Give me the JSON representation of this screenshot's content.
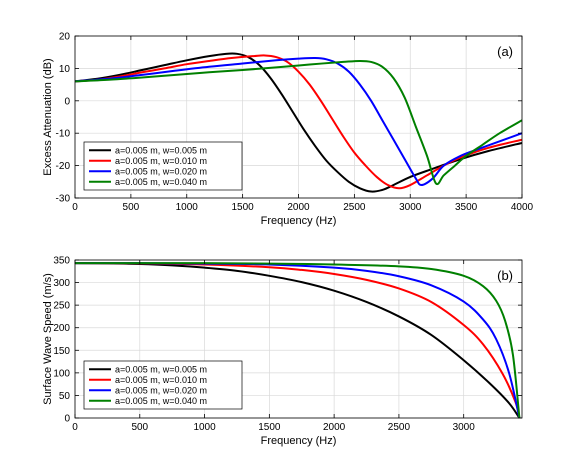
{
  "chart_data": [
    {
      "type": "line",
      "panel_label": "(a)",
      "xlabel": "Frequency (Hz)",
      "ylabel": "Excess Attenuation (dB)",
      "xlim": [
        0,
        4000
      ],
      "ylim": [
        -30,
        20
      ],
      "xticks": [
        0,
        500,
        1000,
        1500,
        2000,
        2500,
        3000,
        3500,
        4000
      ],
      "yticks": [
        -30,
        -20,
        -10,
        0,
        10,
        20
      ],
      "grid": true,
      "legend_position": "bottom-left",
      "series": [
        {
          "name": "a=0.005 m, w=0.005 m",
          "color": "#000000",
          "x": [
            0,
            200,
            400,
            600,
            800,
            1000,
            1200,
            1350,
            1450,
            1550,
            1650,
            1750,
            1850,
            1950,
            2050,
            2150,
            2250,
            2350,
            2450,
            2550,
            2650,
            2750,
            2850,
            3000,
            3200,
            3450,
            3700,
            4000
          ],
          "y": [
            6,
            6.8,
            8,
            9.5,
            11,
            12.5,
            13.8,
            14.5,
            14.5,
            13.5,
            11,
            7,
            2,
            -3.5,
            -9,
            -14,
            -18.5,
            -22,
            -25,
            -27,
            -28,
            -27.5,
            -26,
            -23.5,
            -21,
            -18,
            -15.5,
            -13
          ]
        },
        {
          "name": "a=0.005 m, w=0.010 m",
          "color": "#ff0000",
          "x": [
            0,
            200,
            400,
            600,
            800,
            1000,
            1200,
            1400,
            1600,
            1700,
            1800,
            1900,
            2000,
            2100,
            2200,
            2300,
            2400,
            2500,
            2600,
            2700,
            2800,
            2900,
            3000,
            3150,
            3300,
            3450,
            3700,
            4000
          ],
          "y": [
            6,
            6.5,
            7.5,
            8.8,
            10,
            11.3,
            12.3,
            13.2,
            13.8,
            14,
            13.5,
            12,
            9,
            5,
            0,
            -5.5,
            -11,
            -16,
            -20,
            -23.5,
            -26,
            -27,
            -26,
            -23,
            -20,
            -17.5,
            -14.5,
            -12
          ]
        },
        {
          "name": "a=0.005 m, w=0.020 m",
          "color": "#0000ff",
          "x": [
            0,
            300,
            600,
            900,
            1200,
            1500,
            1800,
            2000,
            2150,
            2250,
            2350,
            2450,
            2550,
            2650,
            2750,
            2850,
            2950,
            3050,
            3100,
            3200,
            3300,
            3450,
            3600,
            3800,
            4000
          ],
          "y": [
            6,
            6.8,
            8,
            9.3,
            10.5,
            11.5,
            12.5,
            13,
            13.2,
            12.8,
            11.5,
            9,
            5,
            0,
            -6,
            -12,
            -18,
            -24,
            -26,
            -24,
            -20,
            -17,
            -15,
            -12.5,
            -10
          ]
        },
        {
          "name": "a=0.005 m, w=0.040 m",
          "color": "#008000",
          "x": [
            0,
            300,
            600,
            900,
            1200,
            1500,
            1800,
            2100,
            2400,
            2550,
            2650,
            2750,
            2850,
            2950,
            3050,
            3150,
            3230,
            3300,
            3400,
            3500,
            3650,
            3800,
            4000
          ],
          "y": [
            6,
            6.5,
            7.2,
            8,
            8.8,
            9.5,
            10.3,
            11.2,
            12,
            12.3,
            12,
            10.5,
            7,
            1,
            -8,
            -17,
            -25.5,
            -23,
            -20,
            -17,
            -13.5,
            -10,
            -6
          ]
        }
      ]
    },
    {
      "type": "line",
      "panel_label": "(b)",
      "xlabel": "Frequency (Hz)",
      "ylabel": "Surface Wave Speed (m/s)",
      "xlim": [
        0,
        3450
      ],
      "ylim": [
        0,
        350
      ],
      "xticks": [
        0,
        500,
        1000,
        1500,
        2000,
        2500,
        3000
      ],
      "yticks": [
        0,
        50,
        100,
        150,
        200,
        250,
        300,
        350
      ],
      "grid": true,
      "legend_position": "bottom-left",
      "series": [
        {
          "name": "a=0.005 m, w=0.005 m",
          "color": "#000000",
          "x": [
            0,
            250,
            500,
            750,
            1000,
            1250,
            1500,
            1750,
            2000,
            2250,
            2500,
            2750,
            3000,
            3200,
            3350,
            3430
          ],
          "y": [
            343,
            342.5,
            341,
            338,
            333,
            326,
            315,
            301,
            282,
            257,
            225,
            184,
            128,
            77,
            33,
            0
          ]
        },
        {
          "name": "a=0.005 m, w=0.010 m",
          "color": "#ff0000",
          "x": [
            0,
            500,
            1000,
            1500,
            1750,
            2000,
            2250,
            2500,
            2750,
            3000,
            3150,
            3300,
            3400,
            3430
          ],
          "y": [
            343,
            342.5,
            340,
            334,
            328,
            319,
            306,
            287,
            257,
            206,
            163,
            98,
            35,
            0
          ]
        },
        {
          "name": "a=0.005 m, w=0.020 m",
          "color": "#0000ff",
          "x": [
            0,
            500,
            1000,
            1500,
            2000,
            2250,
            2500,
            2750,
            3000,
            3150,
            3250,
            3350,
            3430
          ],
          "y": [
            343,
            343,
            342,
            340,
            333,
            326,
            314,
            294,
            258,
            218,
            175,
            100,
            0
          ]
        },
        {
          "name": "a=0.005 m, w=0.040 m",
          "color": "#008000",
          "x": [
            0,
            500,
            1000,
            1500,
            2000,
            2500,
            2750,
            3000,
            3150,
            3250,
            3320,
            3380,
            3430
          ],
          "y": [
            343,
            343,
            343,
            342,
            340,
            336,
            330,
            315,
            292,
            260,
            215,
            140,
            0
          ]
        }
      ]
    }
  ]
}
